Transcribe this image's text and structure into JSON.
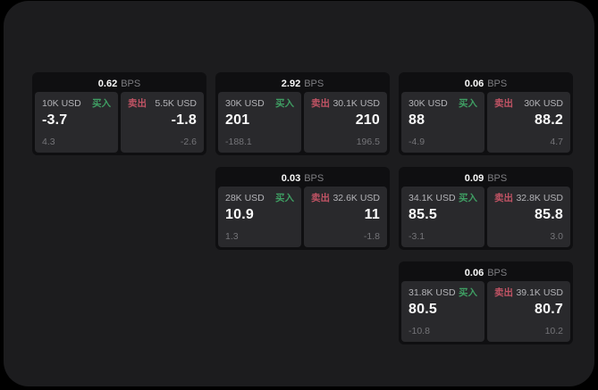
{
  "labels": {
    "bps": "BPS",
    "buy": "买入",
    "sell": "卖出"
  },
  "colors": {
    "buy": "#3f9e63",
    "sell": "#c05364",
    "app_bg": "#1c1c1e",
    "card_bg": "#0f0f11",
    "panel_bg": "#29292c"
  },
  "cards": [
    {
      "bps": "0.62",
      "buy": {
        "amount": "10K USD",
        "price": "-3.7",
        "delta": "4.3"
      },
      "sell": {
        "amount": "5.5K USD",
        "price": "-1.8",
        "delta": "-2.6"
      }
    },
    {
      "bps": "2.92",
      "buy": {
        "amount": "30K USD",
        "price": "201",
        "delta": "-188.1"
      },
      "sell": {
        "amount": "30.1K USD",
        "price": "210",
        "delta": "196.5"
      }
    },
    {
      "bps": "0.06",
      "buy": {
        "amount": "30K USD",
        "price": "88",
        "delta": "-4.9"
      },
      "sell": {
        "amount": "30K USD",
        "price": "88.2",
        "delta": "4.7"
      }
    },
    {
      "bps": "0.03",
      "buy": {
        "amount": "28K USD",
        "price": "10.9",
        "delta": "1.3"
      },
      "sell": {
        "amount": "32.6K USD",
        "price": "11",
        "delta": "-1.8"
      }
    },
    {
      "bps": "0.09",
      "buy": {
        "amount": "34.1K USD",
        "price": "85.5",
        "delta": "-3.1"
      },
      "sell": {
        "amount": "32.8K USD",
        "price": "85.8",
        "delta": "3.0"
      }
    },
    {
      "bps": "0.06",
      "buy": {
        "amount": "31.8K USD",
        "price": "80.5",
        "delta": "-10.8"
      },
      "sell": {
        "amount": "39.1K USD",
        "price": "80.7",
        "delta": "10.2"
      }
    }
  ]
}
